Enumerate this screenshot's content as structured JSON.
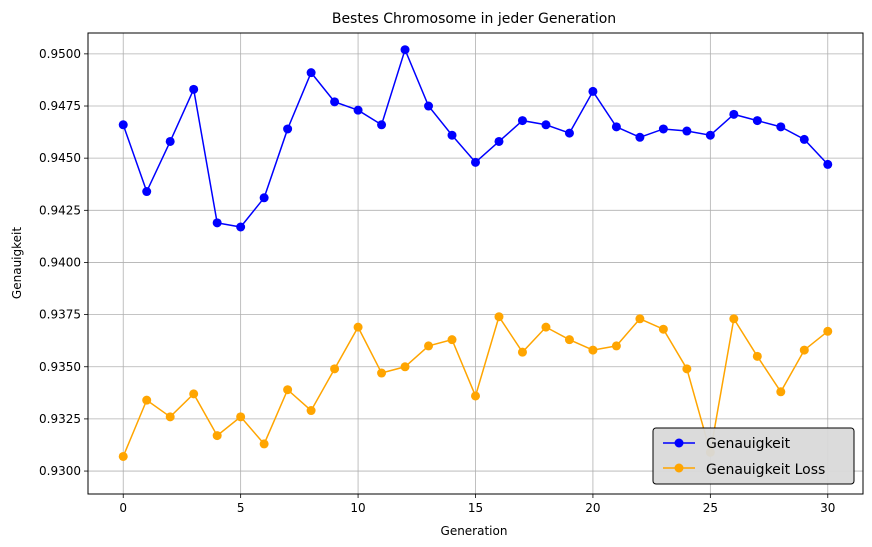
{
  "chart_data": {
    "type": "line",
    "title": "Bestes Chromosome in jeder Generation",
    "xlabel": "Generation",
    "ylabel": "Genauigkeit",
    "xlim": [
      -1.5,
      31.5
    ],
    "ylim": [
      0.9289,
      0.951
    ],
    "xticks": [
      0,
      5,
      10,
      15,
      20,
      25,
      30
    ],
    "yticks": [
      0.93,
      0.9325,
      0.935,
      0.9375,
      0.94,
      0.9425,
      0.945,
      0.9475,
      0.95
    ],
    "ytick_labels": [
      "0.9300",
      "0.9325",
      "0.9350",
      "0.9375",
      "0.9400",
      "0.9425",
      "0.9450",
      "0.9475",
      "0.9500"
    ],
    "grid": true,
    "legend_position": "lower-right",
    "x": [
      0,
      1,
      2,
      3,
      4,
      5,
      6,
      7,
      8,
      9,
      10,
      11,
      12,
      13,
      14,
      15,
      16,
      17,
      18,
      19,
      20,
      21,
      22,
      23,
      24,
      25,
      26,
      27,
      28,
      29,
      30
    ],
    "series": [
      {
        "name": "Genauigkeit",
        "color": "#0000ff",
        "marker": "circle",
        "values": [
          0.9466,
          0.9434,
          0.9458,
          0.9483,
          0.9419,
          0.9417,
          0.9431,
          0.9464,
          0.9491,
          0.9477,
          0.9473,
          0.9466,
          0.9502,
          0.9475,
          0.9461,
          0.9448,
          0.9458,
          0.9468,
          0.9466,
          0.9462,
          0.9482,
          0.9465,
          0.946,
          0.9464,
          0.9463,
          0.9461,
          0.9471,
          0.9468,
          0.9465,
          0.9459,
          0.9447
        ]
      },
      {
        "name": "Genauigkeit Loss",
        "color": "#ffa500",
        "marker": "circle",
        "values": [
          0.9307,
          0.9334,
          0.9326,
          0.9337,
          0.9317,
          0.9326,
          0.9313,
          0.9339,
          0.9329,
          0.9349,
          0.9369,
          0.9347,
          0.935,
          0.936,
          0.9363,
          0.9336,
          0.9374,
          0.9357,
          0.9369,
          0.9363,
          0.9358,
          0.936,
          0.9373,
          0.9368,
          0.9349,
          0.9309,
          0.9373,
          0.9355,
          0.9338,
          0.9358,
          0.9367
        ]
      }
    ]
  }
}
